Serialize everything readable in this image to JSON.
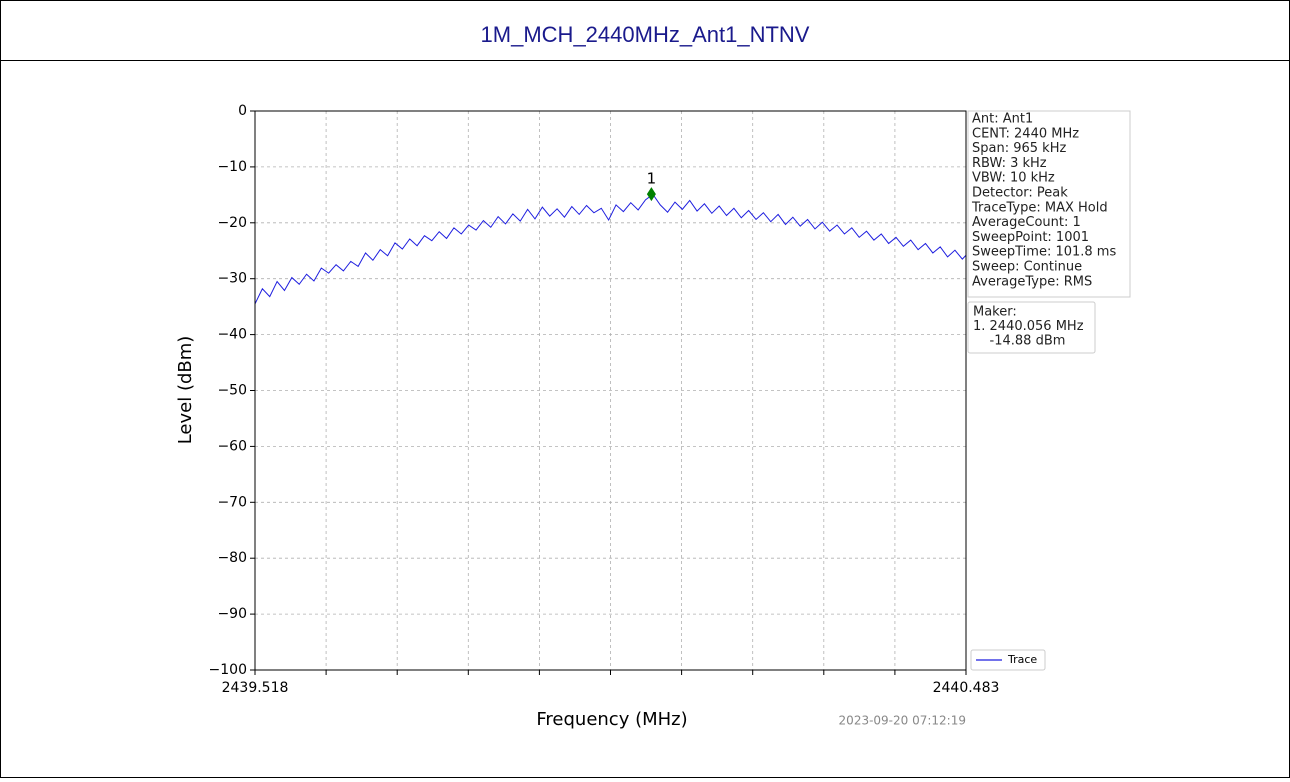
{
  "chart_data": {
    "type": "line",
    "title": "1M_MCH_2440MHz_Ant1_NTNV",
    "xlabel": "Frequency (MHz)",
    "ylabel": "Level (dBm)",
    "timestamp": "2023-09-20 07:12:19",
    "xlim": [
      2439.518,
      2440.483
    ],
    "xticks": [
      2439.518,
      2440.483
    ],
    "xgrid_divisions": 10,
    "ylim": [
      -100,
      0
    ],
    "yticks": [
      {
        "value": -100,
        "label": "−100"
      },
      {
        "value": -90,
        "label": "−90"
      },
      {
        "value": -80,
        "label": "−80"
      },
      {
        "value": -70,
        "label": "−70"
      },
      {
        "value": -60,
        "label": "−60"
      },
      {
        "value": -50,
        "label": "−50"
      },
      {
        "value": -40,
        "label": "−40"
      },
      {
        "value": -30,
        "label": "−30"
      },
      {
        "value": -20,
        "label": "−20"
      },
      {
        "value": -10,
        "label": "−10"
      },
      0
    ],
    "grid": true,
    "legend": "lower right",
    "series": [
      {
        "name": "Trace",
        "color": "#1f1fdf",
        "x": [
          2439.518,
          2439.528,
          2439.538,
          2439.548,
          2439.558,
          2439.568,
          2439.578,
          2439.588,
          2439.598,
          2439.608,
          2439.618,
          2439.628,
          2439.638,
          2439.648,
          2439.658,
          2439.668,
          2439.678,
          2439.688,
          2439.698,
          2439.708,
          2439.718,
          2439.728,
          2439.738,
          2439.748,
          2439.758,
          2439.768,
          2439.778,
          2439.788,
          2439.798,
          2439.808,
          2439.818,
          2439.828,
          2439.838,
          2439.848,
          2439.858,
          2439.868,
          2439.878,
          2439.888,
          2439.898,
          2439.908,
          2439.918,
          2439.928,
          2439.938,
          2439.948,
          2439.958,
          2439.968,
          2439.978,
          2439.988,
          2439.998,
          2440.008,
          2440.018,
          2440.028,
          2440.038,
          2440.048,
          2440.058,
          2440.068,
          2440.078,
          2440.088,
          2440.098,
          2440.108,
          2440.118,
          2440.128,
          2440.138,
          2440.148,
          2440.158,
          2440.168,
          2440.178,
          2440.188,
          2440.198,
          2440.208,
          2440.218,
          2440.228,
          2440.238,
          2440.248,
          2440.258,
          2440.268,
          2440.278,
          2440.288,
          2440.298,
          2440.308,
          2440.318,
          2440.328,
          2440.338,
          2440.348,
          2440.358,
          2440.368,
          2440.378,
          2440.388,
          2440.398,
          2440.408,
          2440.418,
          2440.428,
          2440.438,
          2440.448,
          2440.458,
          2440.468,
          2440.478,
          2440.483
        ],
        "values": [
          -34.5,
          -31.8,
          -33.2,
          -30.5,
          -32.1,
          -29.8,
          -31.0,
          -29.2,
          -30.4,
          -28.1,
          -29.0,
          -27.5,
          -28.6,
          -26.9,
          -27.8,
          -25.4,
          -26.7,
          -24.8,
          -25.9,
          -23.6,
          -24.7,
          -22.9,
          -24.1,
          -22.3,
          -23.2,
          -21.6,
          -22.8,
          -20.9,
          -22.0,
          -20.4,
          -21.3,
          -19.6,
          -20.8,
          -18.9,
          -20.2,
          -18.4,
          -19.7,
          -17.6,
          -19.3,
          -17.2,
          -18.8,
          -17.5,
          -19.0,
          -17.1,
          -18.5,
          -16.9,
          -18.2,
          -17.4,
          -19.5,
          -16.8,
          -18.0,
          -16.4,
          -17.7,
          -15.9,
          -14.9,
          -16.8,
          -18.1,
          -16.3,
          -17.6,
          -16.0,
          -17.9,
          -16.6,
          -18.3,
          -17.0,
          -18.7,
          -17.4,
          -19.1,
          -17.8,
          -19.4,
          -18.2,
          -19.8,
          -18.5,
          -20.3,
          -19.0,
          -20.6,
          -19.4,
          -21.1,
          -19.9,
          -21.5,
          -20.4,
          -22.0,
          -20.9,
          -22.6,
          -21.5,
          -23.1,
          -22.0,
          -23.7,
          -22.6,
          -24.2,
          -23.1,
          -24.8,
          -23.7,
          -25.4,
          -24.3,
          -26.1,
          -24.9,
          -26.5,
          -25.8
        ]
      }
    ],
    "markers": [
      {
        "label": "1",
        "x": 2440.056,
        "y": -14.88,
        "color": "#008000"
      }
    ],
    "info": [
      "Ant: Ant1",
      "CENT: 2440 MHz",
      "Span: 965 kHz",
      "RBW: 3 kHz",
      "VBW: 10 kHz",
      "Detector: Peak",
      "TraceType: MAX Hold",
      "AverageCount: 1",
      "SweepPoint: 1001",
      "SweepTime: 101.8 ms",
      "Sweep: Continue",
      "AverageType: RMS"
    ],
    "marker_box": [
      "Maker:",
      "1. 2440.056 MHz",
      "    -14.88 dBm"
    ]
  }
}
